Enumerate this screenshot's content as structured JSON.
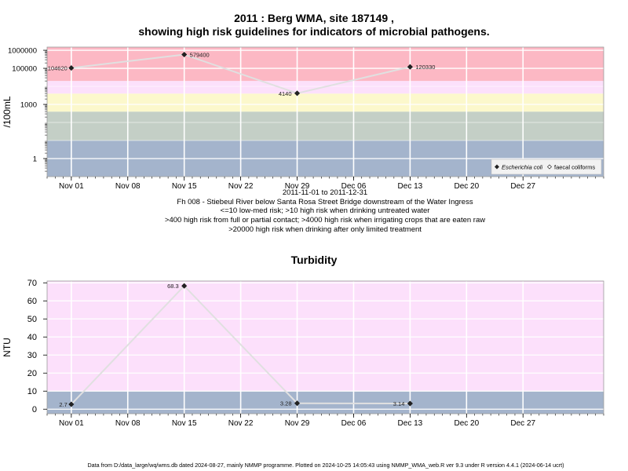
{
  "chart1_title": {
    "line1": "2011 : Berg WMA, site 187149 ,",
    "line2": "showing high risk guidelines for indicators of microbial pathogens."
  },
  "chart1_caption": [
    "2011-11-01 to 2011-12-31",
    "Fh 008 - Stiebeul River below Santa Rosa Street Bridge downstream of the Water Ingress",
    "<=10 low-med risk; >10 high risk when drinking untreated water",
    ">400 high risk from full or partial contact; >4000 high risk when irrigating crops that are eaten raw",
    ">20000 high risk when drinking after only limited treatment"
  ],
  "chart2_title": "Turbidity",
  "footer": "Data from D:/data_large/wq/wms.db dated 2024-08-27, mainly NMMP programme. Plotted on 2024-10-25 14:05:43 using NMMP_WMA_web.R ver 9.3 under R version 4.4.1 (2024-06-14 ucrt)",
  "colors": {
    "band_blue": "#a4b4cc",
    "band_green": "#c4cfc6",
    "band_yellow": "#fcf8cc",
    "band_pink_light": "#fce0fb",
    "band_red": "#fcb8c4",
    "line": "#e0e0e0"
  },
  "chart_data": [
    {
      "type": "line",
      "scale": "log10",
      "x": [
        "2011-11-01",
        "2011-11-15",
        "2011-11-29",
        "2011-12-13"
      ],
      "xlim": [
        "2011-10-29",
        "2012-01-06"
      ],
      "x_ticks": [
        {
          "date": "2011-11-01",
          "label": "Nov 01"
        },
        {
          "date": "2011-11-08",
          "label": "Nov 08"
        },
        {
          "date": "2011-11-15",
          "label": "Nov 15"
        },
        {
          "date": "2011-11-22",
          "label": "Nov 22"
        },
        {
          "date": "2011-11-29",
          "label": "Nov 29"
        },
        {
          "date": "2011-12-06",
          "label": "Dec 06"
        },
        {
          "date": "2011-12-13",
          "label": "Dec 13"
        },
        {
          "date": "2011-12-20",
          "label": "Dec 20"
        },
        {
          "date": "2011-12-27",
          "label": "Dec 27"
        }
      ],
      "ylabel": "/100mL",
      "ylim": [
        0.1,
        1500000
      ],
      "y_ticks": [
        {
          "value": 1,
          "label": "1"
        },
        {
          "value": 1000,
          "label": "1000"
        },
        {
          "value": 100000,
          "label": "100000"
        },
        {
          "value": 1000000,
          "label": "1000000"
        }
      ],
      "series": [
        {
          "name": "Escherichia coli",
          "marker": "filled-diamond",
          "values": [
            104620,
            579400,
            4140,
            120330
          ],
          "labels": [
            "104620",
            "579400",
            "4140",
            "120330"
          ]
        }
      ],
      "legend": {
        "position": "bottom-right",
        "entries": [
          {
            "label": "Escherichia coli",
            "marker": "filled-diamond",
            "italic": true
          },
          {
            "label": "faecal coliforms",
            "marker": "open-diamond",
            "italic": false
          }
        ]
      },
      "bands": [
        {
          "from": 0.1,
          "to": 10,
          "color": "#a4b4cc"
        },
        {
          "from": 10,
          "to": 400,
          "color": "#c4cfc6"
        },
        {
          "from": 400,
          "to": 4000,
          "color": "#fcf8cc"
        },
        {
          "from": 4000,
          "to": 20000,
          "color": "#fce0fb"
        },
        {
          "from": 20000,
          "to": 1500000,
          "color": "#fcb8c4"
        }
      ],
      "grid": true
    },
    {
      "type": "line",
      "x": [
        "2011-11-01",
        "2011-11-15",
        "2011-11-29",
        "2011-12-13"
      ],
      "xlim": [
        "2011-10-29",
        "2012-01-06"
      ],
      "x_ticks": [
        {
          "date": "2011-11-01",
          "label": "Nov 01"
        },
        {
          "date": "2011-11-08",
          "label": "Nov 08"
        },
        {
          "date": "2011-11-15",
          "label": "Nov 15"
        },
        {
          "date": "2011-11-22",
          "label": "Nov 22"
        },
        {
          "date": "2011-11-29",
          "label": "Nov 29"
        },
        {
          "date": "2011-12-06",
          "label": "Dec 06"
        },
        {
          "date": "2011-12-13",
          "label": "Dec 13"
        },
        {
          "date": "2011-12-20",
          "label": "Dec 20"
        },
        {
          "date": "2011-12-27",
          "label": "Dec 27"
        }
      ],
      "ylabel": "NTU",
      "ylim": [
        -2.5,
        71
      ],
      "y_ticks": [
        {
          "value": 0,
          "label": "0"
        },
        {
          "value": 10,
          "label": "10"
        },
        {
          "value": 20,
          "label": "20"
        },
        {
          "value": 30,
          "label": "30"
        },
        {
          "value": 40,
          "label": "40"
        },
        {
          "value": 50,
          "label": "50"
        },
        {
          "value": 60,
          "label": "60"
        },
        {
          "value": 70,
          "label": "70"
        }
      ],
      "series": [
        {
          "marker": "filled-diamond",
          "values": [
            2.7,
            68.3,
            3.28,
            3.14
          ],
          "labels": [
            "2.7",
            "68.3",
            "3.28",
            "3.14"
          ]
        }
      ],
      "bands": [
        {
          "from": -2.5,
          "to": 10,
          "color": "#a4b4cc"
        },
        {
          "from": 10,
          "to": 71,
          "color": "#fce0fb"
        }
      ],
      "grid": true
    }
  ]
}
